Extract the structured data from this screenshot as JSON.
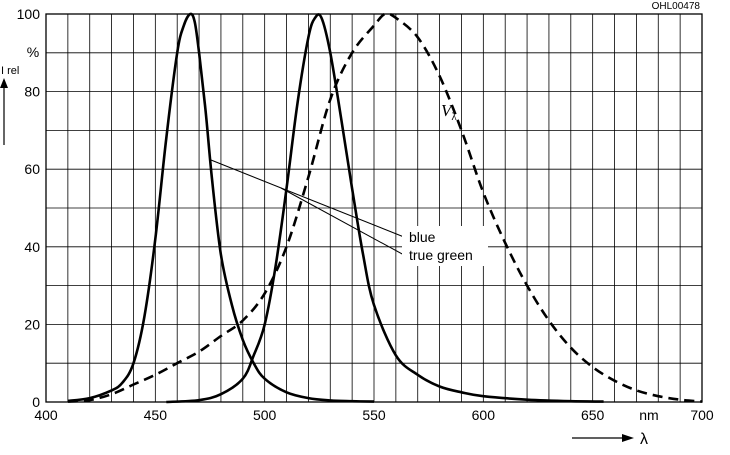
{
  "chart_data": {
    "type": "line",
    "figure_code": "OHL00478",
    "ylabel": "I rel",
    "y_unit": "%",
    "x_unit": "nm",
    "xlabel": "λ",
    "xlim": [
      400,
      700
    ],
    "ylim": [
      0,
      100
    ],
    "x_ticks": [
      400,
      450,
      500,
      550,
      600,
      650,
      700
    ],
    "y_ticks": [
      0,
      20,
      40,
      60,
      80,
      100
    ],
    "grid": true,
    "series": [
      {
        "name": "blue",
        "style": "solid",
        "x": [
          410,
          420,
          430,
          435,
          440,
          445,
          450,
          455,
          460,
          463,
          466,
          468,
          470,
          473,
          476,
          480,
          485,
          490,
          495,
          500,
          510,
          520,
          530,
          540,
          550
        ],
        "y": [
          0.3,
          1,
          3,
          5,
          10,
          22,
          42,
          68,
          90,
          97,
          100,
          98,
          90,
          75,
          57,
          38,
          25,
          16,
          10,
          6,
          2.5,
          1,
          0.4,
          0.2,
          0.1
        ]
      },
      {
        "name": "true green",
        "style": "solid",
        "x": [
          455,
          470,
          480,
          490,
          495,
          500,
          505,
          510,
          515,
          520,
          523,
          526,
          530,
          535,
          540,
          545,
          550,
          560,
          570,
          580,
          590,
          600,
          620,
          640,
          655
        ],
        "y": [
          0,
          0.5,
          2,
          6,
          12,
          20,
          35,
          55,
          77,
          94,
          99,
          99,
          90,
          73,
          55,
          38,
          25,
          12,
          7,
          4,
          2.5,
          1.5,
          0.6,
          0.2,
          0.1
        ]
      },
      {
        "name": "Vλ",
        "style": "dashed",
        "x": [
          410,
          420,
          430,
          440,
          450,
          460,
          470,
          480,
          490,
          500,
          510,
          520,
          530,
          540,
          550,
          555,
          560,
          570,
          580,
          590,
          600,
          610,
          620,
          630,
          640,
          650,
          660,
          670,
          680,
          690,
          700
        ],
        "y": [
          0.1,
          0.5,
          2,
          4.5,
          7,
          10,
          13,
          17,
          21,
          28,
          40,
          58,
          78,
          90,
          97,
          100,
          99,
          94,
          84,
          70,
          54,
          41,
          30,
          21,
          14,
          9,
          5.5,
          3,
          1.5,
          0.6,
          0.1
        ]
      }
    ],
    "annotations": {
      "vlambda_label": "V",
      "vlambda_sub": "λ",
      "legend_lines": [
        "blue",
        "true green"
      ]
    }
  }
}
